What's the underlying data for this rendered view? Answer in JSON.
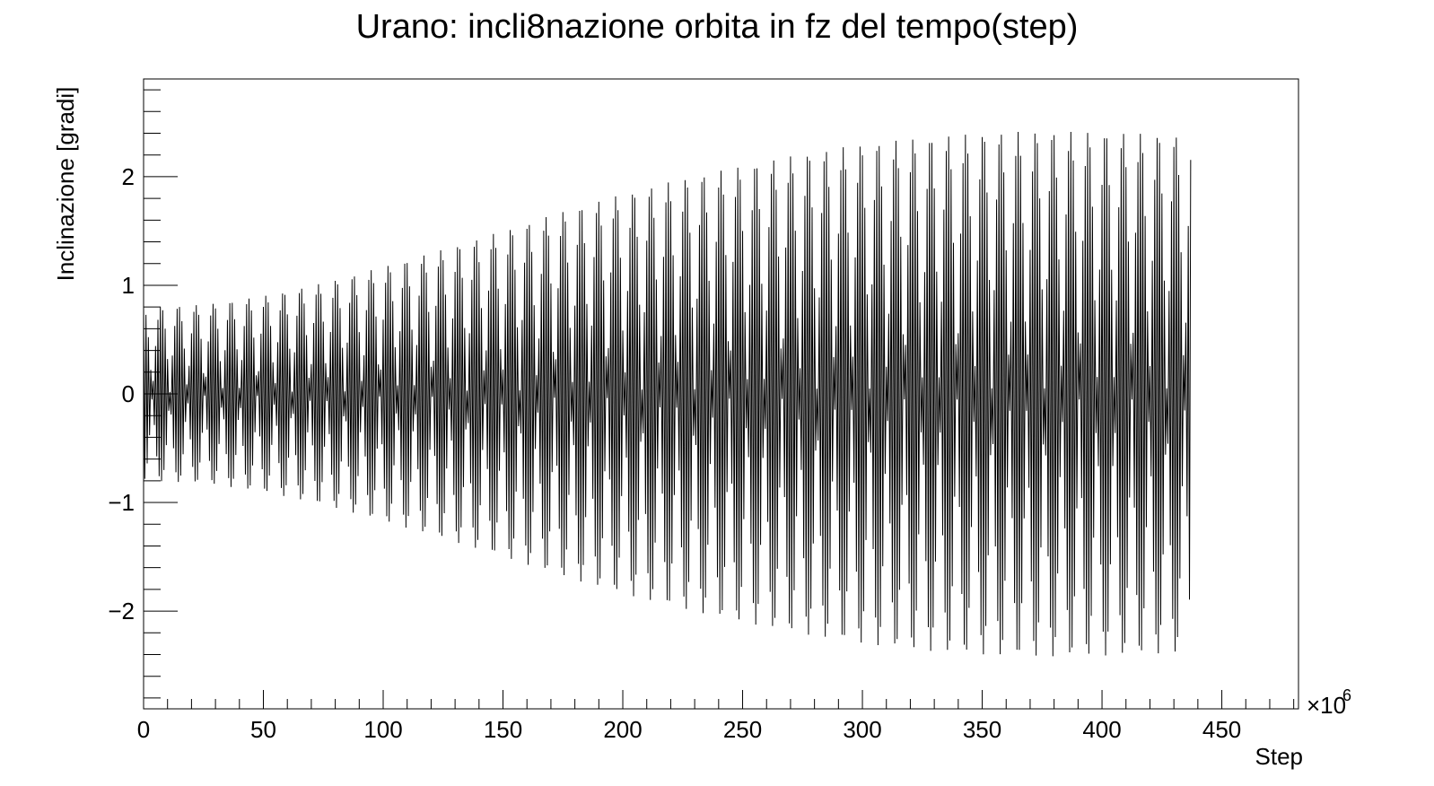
{
  "chart_data": {
    "type": "line",
    "title": "Urano: incli8nazione orbita in fz del tempo(step)",
    "xlabel": "Step",
    "ylabel": "Inclinazione [gradi]",
    "x_exponent_label": "×10",
    "x_exponent_power": "6",
    "xlim": [
      0,
      482
    ],
    "ylim": [
      -2.9,
      2.9
    ],
    "x_ticks": [
      0,
      50,
      100,
      150,
      200,
      250,
      300,
      350,
      400,
      450
    ],
    "x_tick_labels": [
      "0",
      "50",
      "100",
      "150",
      "200",
      "250",
      "300",
      "350",
      "400",
      "450"
    ],
    "y_ticks": [
      -2,
      -1,
      0,
      1,
      2
    ],
    "y_tick_labels": [
      "−2",
      "−1",
      "0",
      "1",
      "2"
    ],
    "grid": false,
    "legend": "none",
    "line_color": "#000000",
    "series": [
      {
        "x_range": [
          0,
          437
        ],
        "envelope_x": [
          0,
          25,
          50,
          75,
          100,
          125,
          150,
          175,
          200,
          225,
          250,
          275,
          300,
          325,
          350,
          375,
          400,
          425,
          437
        ],
        "envelope_amplitude": [
          0.8,
          0.82,
          0.9,
          1.02,
          1.17,
          1.33,
          1.5,
          1.68,
          1.84,
          1.98,
          2.1,
          2.21,
          2.3,
          2.36,
          2.4,
          2.42,
          2.41,
          2.39,
          2.37
        ],
        "beat_period": 14.6
      }
    ]
  }
}
